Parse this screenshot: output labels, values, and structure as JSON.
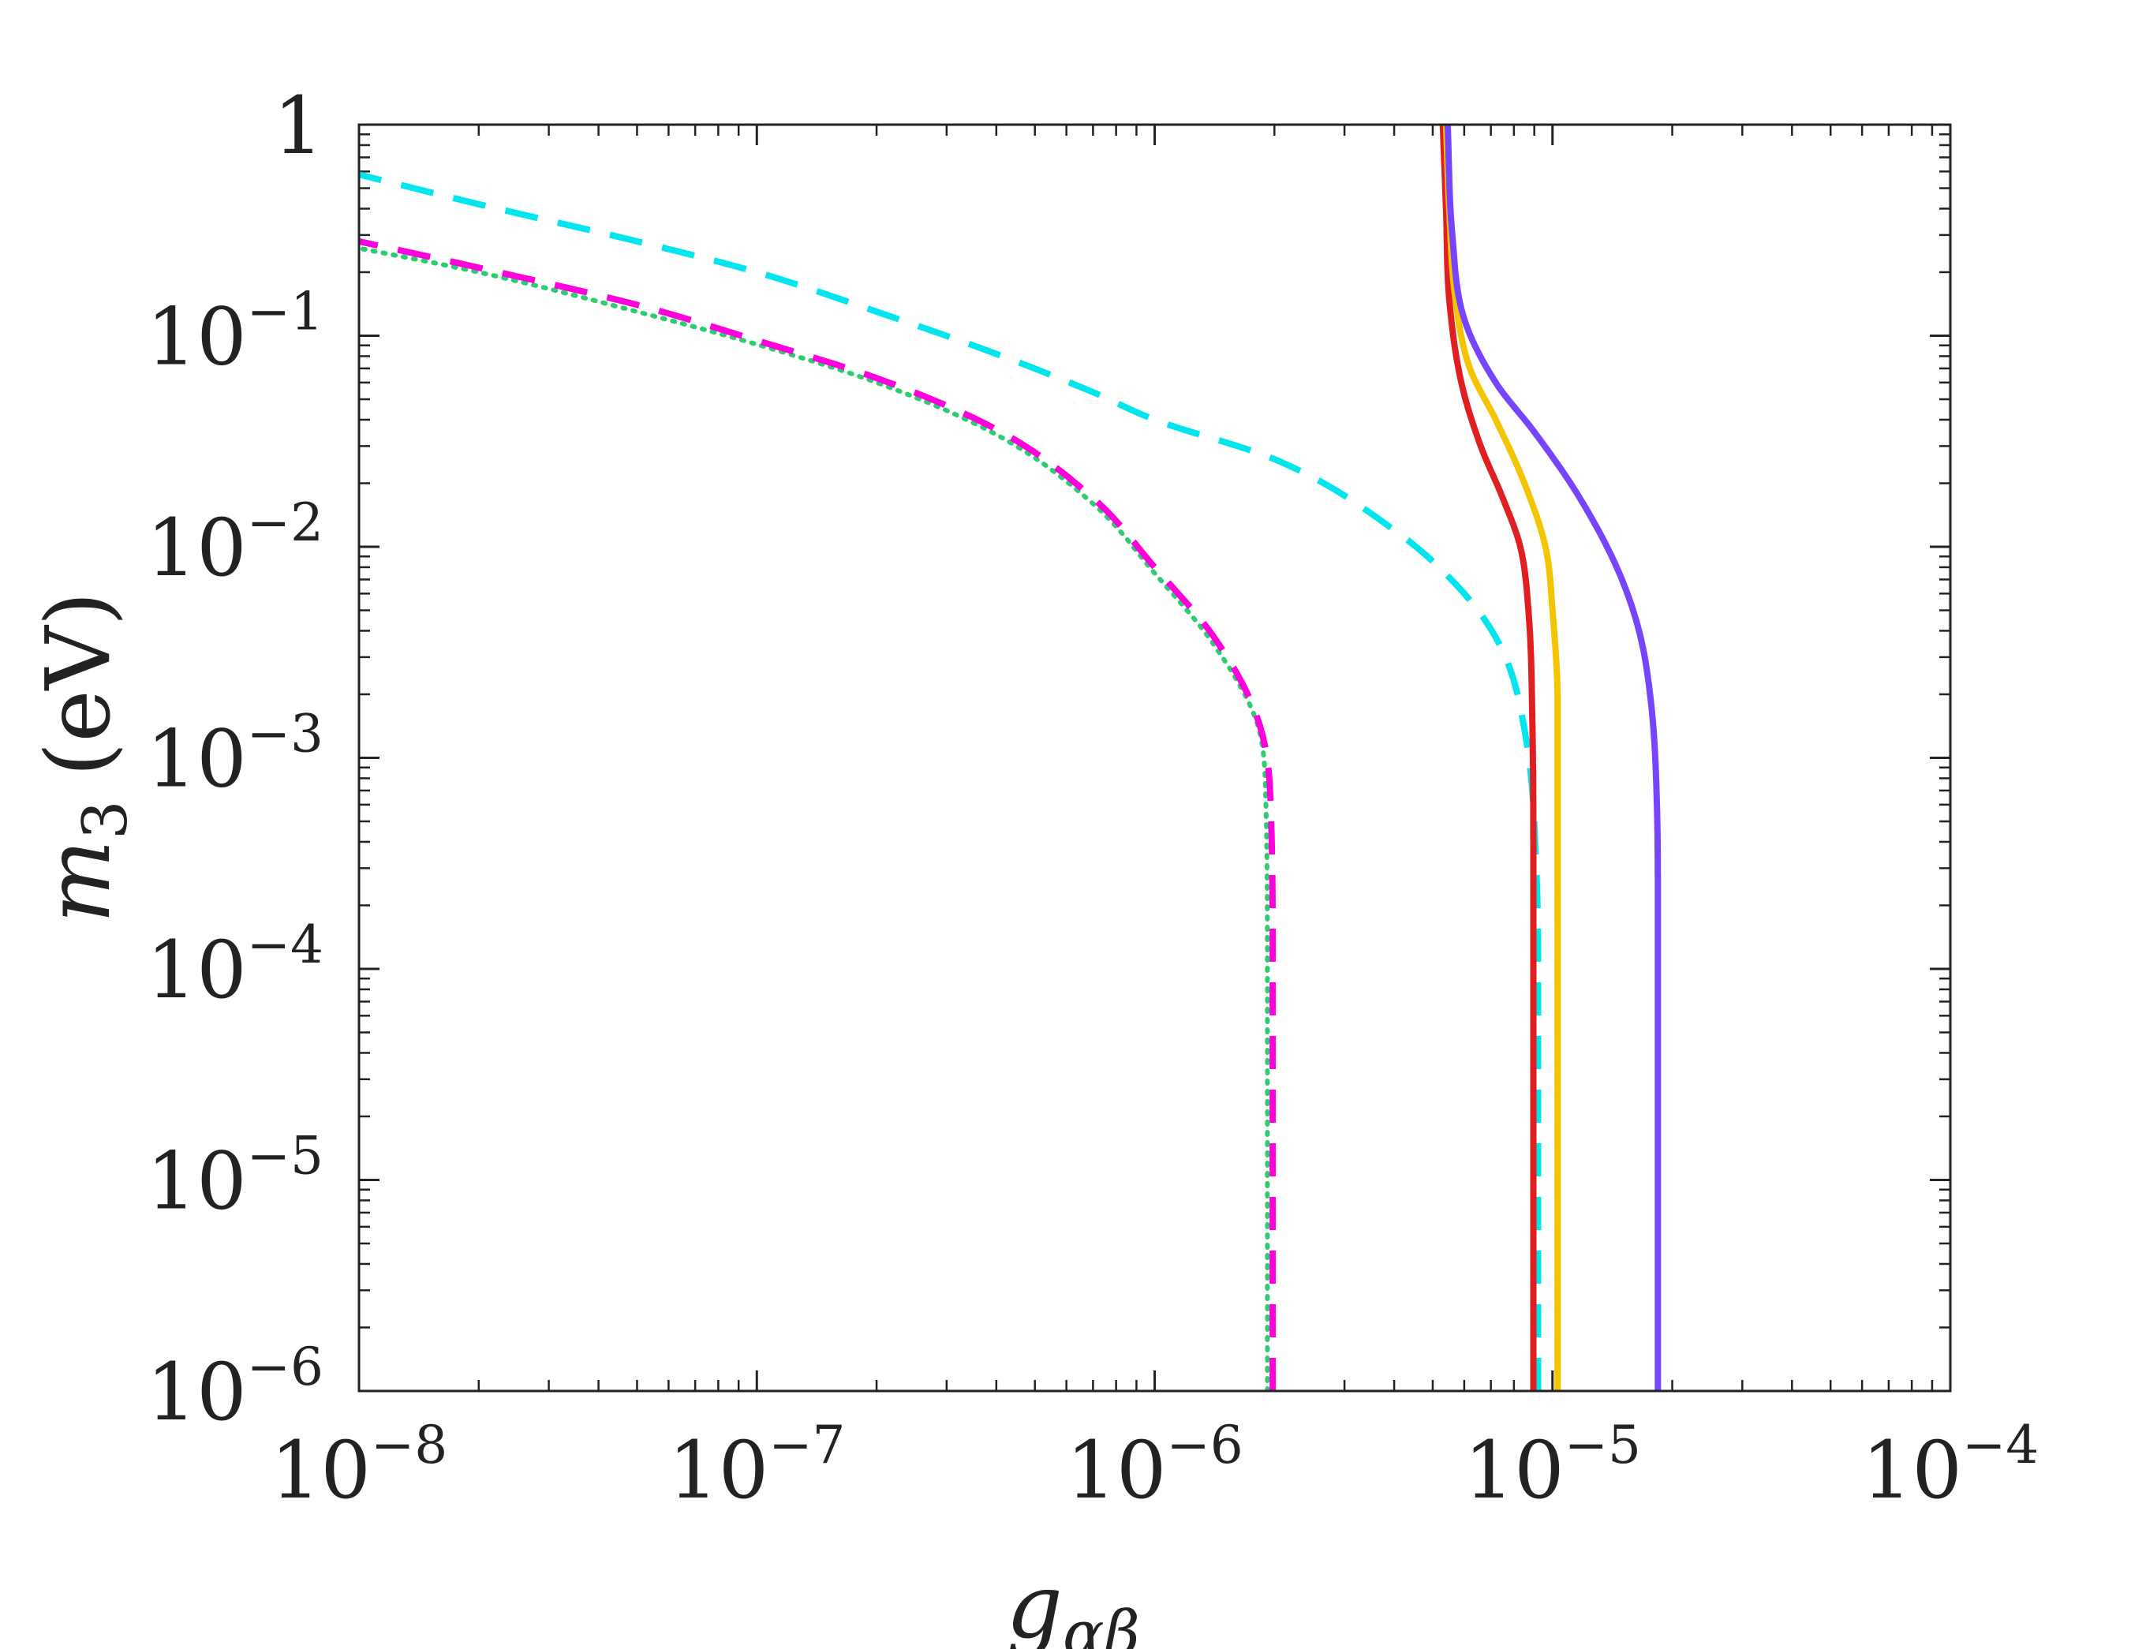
{
  "chart_data": {
    "type": "line",
    "title": "",
    "xlabel": "g_{αβ}",
    "ylabel": "m_3 (eV)",
    "xlabel_parts": {
      "main": "g",
      "sub": "αβ"
    },
    "ylabel_parts": {
      "main": "m",
      "sub": "3",
      "unit": "(eV)"
    },
    "xscale": "log",
    "yscale": "log",
    "xlim": [
      1e-08,
      0.0001
    ],
    "ylim": [
      1e-06,
      1
    ],
    "grid": false,
    "x_ticks": [
      {
        "value": 1e-08,
        "base": "10",
        "exp": "−8"
      },
      {
        "value": 1e-07,
        "base": "10",
        "exp": "−7"
      },
      {
        "value": 1e-06,
        "base": "10",
        "exp": "−6"
      },
      {
        "value": 1e-05,
        "base": "10",
        "exp": "−5"
      },
      {
        "value": 0.0001,
        "base": "10",
        "exp": "−4"
      }
    ],
    "y_ticks": [
      {
        "value": 1,
        "base": "1",
        "exp": ""
      },
      {
        "value": 0.1,
        "base": "10",
        "exp": "−1"
      },
      {
        "value": 0.01,
        "base": "10",
        "exp": "−2"
      },
      {
        "value": 0.001,
        "base": "10",
        "exp": "−3"
      },
      {
        "value": 0.0001,
        "base": "10",
        "exp": "−4"
      },
      {
        "value": 1e-05,
        "base": "10",
        "exp": "−5"
      },
      {
        "value": 1e-06,
        "base": "10",
        "exp": "−6"
      }
    ],
    "series": [
      {
        "name": "green-dotted",
        "color": "#2ecc71",
        "style": "dotted",
        "points": [
          [
            1e-08,
            0.26
          ],
          [
            2e-08,
            0.2
          ],
          [
            5e-08,
            0.13
          ],
          [
            1e-07,
            0.091
          ],
          [
            2e-07,
            0.06
          ],
          [
            4e-07,
            0.034
          ],
          [
            7e-07,
            0.016
          ],
          [
            1e-06,
            0.0075
          ],
          [
            1.4e-06,
            0.0035
          ],
          [
            1.8e-06,
            0.0015
          ],
          [
            1.9e-06,
            0.0007
          ],
          [
            1.92e-06,
            0.0001
          ],
          [
            1.92e-06,
            1e-06
          ]
        ]
      },
      {
        "name": "magenta-dashed",
        "color": "#ff00dd",
        "style": "dashed",
        "points": [
          [
            1e-08,
            0.28
          ],
          [
            2e-08,
            0.21
          ],
          [
            5e-08,
            0.14
          ],
          [
            1e-07,
            0.095
          ],
          [
            2e-07,
            0.063
          ],
          [
            4e-07,
            0.036
          ],
          [
            7e-07,
            0.017
          ],
          [
            1e-06,
            0.008
          ],
          [
            1.4e-06,
            0.0038
          ],
          [
            1.8e-06,
            0.0016
          ],
          [
            1.95e-06,
            0.0007
          ],
          [
            1.98e-06,
            0.0001
          ],
          [
            1.98e-06,
            1e-06
          ]
        ]
      },
      {
        "name": "cyan-dashed",
        "color": "#00e5ee",
        "style": "dashed",
        "points": [
          [
            1e-08,
            0.58
          ],
          [
            2e-08,
            0.42
          ],
          [
            5e-08,
            0.28
          ],
          [
            1e-07,
            0.2
          ],
          [
            2e-07,
            0.13
          ],
          [
            4e-07,
            0.082
          ],
          [
            7e-07,
            0.054
          ],
          [
            1e-06,
            0.04
          ],
          [
            2e-06,
            0.026
          ],
          [
            4e-06,
            0.012
          ],
          [
            6e-06,
            0.006
          ],
          [
            7.5e-06,
            0.0032
          ],
          [
            8.6e-06,
            0.0012
          ],
          [
            9.1e-06,
            0.0003
          ],
          [
            9.2e-06,
            0.0001
          ],
          [
            9.2e-06,
            1e-06
          ]
        ]
      },
      {
        "name": "red-solid",
        "color": "#e02020",
        "style": "solid",
        "points": [
          [
            5.3e-06,
            1
          ],
          [
            5.4e-06,
            0.4
          ],
          [
            5.5e-06,
            0.15
          ],
          [
            5.9e-06,
            0.06
          ],
          [
            6.6e-06,
            0.03
          ],
          [
            7.5e-06,
            0.017
          ],
          [
            8.3e-06,
            0.01
          ],
          [
            8.7e-06,
            0.005
          ],
          [
            8.9e-06,
            0.0015
          ],
          [
            8.95e-06,
            0.0003
          ],
          [
            8.95e-06,
            1e-06
          ]
        ]
      },
      {
        "name": "yellow-solid",
        "color": "#f5c400",
        "style": "solid",
        "points": [
          [
            5.4e-06,
            1
          ],
          [
            5.5e-06,
            0.4
          ],
          [
            5.7e-06,
            0.15
          ],
          [
            6.2e-06,
            0.07
          ],
          [
            7.2e-06,
            0.04
          ],
          [
            8.5e-06,
            0.02
          ],
          [
            9.6e-06,
            0.01
          ],
          [
            1e-05,
            0.005
          ],
          [
            1.03e-05,
            0.0018
          ],
          [
            1.03e-05,
            0.0005
          ],
          [
            1.03e-05,
            1e-06
          ]
        ]
      },
      {
        "name": "purple-solid",
        "color": "#7744ff",
        "style": "solid",
        "points": [
          [
            5.45e-06,
            1
          ],
          [
            5.6e-06,
            0.3
          ],
          [
            6e-06,
            0.12
          ],
          [
            7.2e-06,
            0.06
          ],
          [
            9e-06,
            0.035
          ],
          [
            1.15e-05,
            0.018
          ],
          [
            1.45e-05,
            0.008
          ],
          [
            1.65e-05,
            0.004
          ],
          [
            1.77e-05,
            0.0018
          ],
          [
            1.83e-05,
            0.0006
          ],
          [
            1.84e-05,
            0.0002
          ],
          [
            1.84e-05,
            1e-06
          ]
        ]
      }
    ]
  }
}
